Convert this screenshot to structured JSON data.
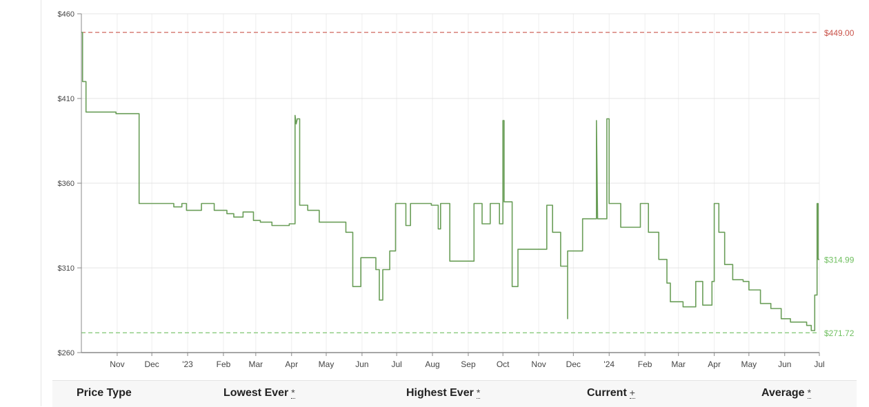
{
  "chart_data": {
    "type": "line",
    "y_ticks": [
      "$460",
      "$410",
      "$360",
      "$310",
      "$260"
    ],
    "y_tick_values": [
      460,
      410,
      360,
      310,
      260
    ],
    "ylim": [
      260,
      460
    ],
    "x_ticks": [
      "Nov",
      "Dec",
      "'23",
      "Feb",
      "Mar",
      "Apr",
      "May",
      "Jun",
      "Jul",
      "Aug",
      "Sep",
      "Oct",
      "Nov",
      "Dec",
      "'24",
      "Feb",
      "Mar",
      "Apr",
      "May",
      "Jun",
      "Jul"
    ],
    "x_tick_dates": [
      "2022-11-01",
      "2022-12-01",
      "2023-01-01",
      "2023-02-01",
      "2023-03-01",
      "2023-04-01",
      "2023-05-01",
      "2023-06-01",
      "2023-07-01",
      "2023-08-01",
      "2023-09-01",
      "2023-10-01",
      "2023-11-01",
      "2023-12-01",
      "2024-01-01",
      "2024-02-01",
      "2024-03-01",
      "2024-04-01",
      "2024-05-01",
      "2024-06-01",
      "2024-07-01"
    ],
    "xlim": [
      "2022-10-01",
      "2024-07-01"
    ],
    "grid": true,
    "series": [
      {
        "color": "#6a9e58",
        "points": [
          [
            "2022-10-01",
            449
          ],
          [
            "2022-10-02",
            449
          ],
          [
            "2022-10-02",
            420
          ],
          [
            "2022-10-05",
            420
          ],
          [
            "2022-10-05",
            402
          ],
          [
            "2022-10-31",
            402
          ],
          [
            "2022-10-31",
            401
          ],
          [
            "2022-11-20",
            401
          ],
          [
            "2022-11-20",
            348
          ],
          [
            "2022-12-20",
            348
          ],
          [
            "2022-12-20",
            346
          ],
          [
            "2022-12-27",
            346
          ],
          [
            "2022-12-27",
            348
          ],
          [
            "2022-12-31",
            348
          ],
          [
            "2022-12-31",
            344
          ],
          [
            "2023-01-13",
            344
          ],
          [
            "2023-01-13",
            348
          ],
          [
            "2023-01-24",
            348
          ],
          [
            "2023-01-24",
            344
          ],
          [
            "2023-02-04",
            344
          ],
          [
            "2023-02-04",
            342
          ],
          [
            "2023-02-10",
            342
          ],
          [
            "2023-02-10",
            340
          ],
          [
            "2023-02-18",
            340
          ],
          [
            "2023-02-18",
            343
          ],
          [
            "2023-02-27",
            343
          ],
          [
            "2023-02-27",
            338
          ],
          [
            "2023-03-05",
            338
          ],
          [
            "2023-03-05",
            337
          ],
          [
            "2023-03-15",
            337
          ],
          [
            "2023-03-15",
            335
          ],
          [
            "2023-03-30",
            335
          ],
          [
            "2023-03-30",
            336
          ],
          [
            "2023-04-04",
            336
          ],
          [
            "2023-04-04",
            400
          ],
          [
            "2023-04-05",
            395
          ],
          [
            "2023-04-06",
            398
          ],
          [
            "2023-04-08",
            398
          ],
          [
            "2023-04-08",
            347
          ],
          [
            "2023-04-15",
            347
          ],
          [
            "2023-04-15",
            344
          ],
          [
            "2023-04-25",
            344
          ],
          [
            "2023-04-25",
            337
          ],
          [
            "2023-05-18",
            337
          ],
          [
            "2023-05-18",
            331
          ],
          [
            "2023-05-24",
            331
          ],
          [
            "2023-05-24",
            299
          ],
          [
            "2023-05-31",
            299
          ],
          [
            "2023-05-31",
            316
          ],
          [
            "2023-06-13",
            316
          ],
          [
            "2023-06-13",
            309
          ],
          [
            "2023-06-16",
            309
          ],
          [
            "2023-06-16",
            291
          ],
          [
            "2023-06-19",
            291
          ],
          [
            "2023-06-19",
            309
          ],
          [
            "2023-06-25",
            309
          ],
          [
            "2023-06-25",
            320
          ],
          [
            "2023-06-30",
            320
          ],
          [
            "2023-06-30",
            348
          ],
          [
            "2023-07-09",
            348
          ],
          [
            "2023-07-09",
            335
          ],
          [
            "2023-07-13",
            335
          ],
          [
            "2023-07-13",
            348
          ],
          [
            "2023-07-31",
            348
          ],
          [
            "2023-07-31",
            347
          ],
          [
            "2023-08-06",
            347
          ],
          [
            "2023-08-06",
            333
          ],
          [
            "2023-08-08",
            333
          ],
          [
            "2023-08-08",
            348
          ],
          [
            "2023-08-16",
            348
          ],
          [
            "2023-08-16",
            314
          ],
          [
            "2023-09-06",
            314
          ],
          [
            "2023-09-06",
            348
          ],
          [
            "2023-09-13",
            348
          ],
          [
            "2023-09-13",
            336
          ],
          [
            "2023-09-20",
            336
          ],
          [
            "2023-09-20",
            348
          ],
          [
            "2023-09-28",
            348
          ],
          [
            "2023-09-28",
            336
          ],
          [
            "2023-10-01",
            336
          ],
          [
            "2023-10-01",
            397
          ],
          [
            "2023-10-02",
            397
          ],
          [
            "2023-10-02",
            349
          ],
          [
            "2023-10-09",
            349
          ],
          [
            "2023-10-09",
            299
          ],
          [
            "2023-10-14",
            299
          ],
          [
            "2023-10-14",
            321
          ],
          [
            "2023-11-08",
            321
          ],
          [
            "2023-11-08",
            347
          ],
          [
            "2023-11-13",
            347
          ],
          [
            "2023-11-13",
            331
          ],
          [
            "2023-11-20",
            331
          ],
          [
            "2023-11-20",
            311
          ],
          [
            "2023-11-26",
            311
          ],
          [
            "2023-11-26",
            280
          ],
          [
            "2023-11-26",
            320
          ],
          [
            "2023-12-09",
            320
          ],
          [
            "2023-12-09",
            339
          ],
          [
            "2023-12-21",
            339
          ],
          [
            "2023-12-21",
            397
          ],
          [
            "2023-12-22",
            339
          ],
          [
            "2023-12-30",
            339
          ],
          [
            "2023-12-30",
            398
          ],
          [
            "2024-01-01",
            398
          ],
          [
            "2024-01-01",
            348
          ],
          [
            "2024-01-11",
            348
          ],
          [
            "2024-01-11",
            334
          ],
          [
            "2024-01-28",
            334
          ],
          [
            "2024-01-28",
            348
          ],
          [
            "2024-02-04",
            348
          ],
          [
            "2024-02-04",
            331
          ],
          [
            "2024-02-13",
            331
          ],
          [
            "2024-02-13",
            315
          ],
          [
            "2024-02-20",
            315
          ],
          [
            "2024-02-20",
            301
          ],
          [
            "2024-02-23",
            301
          ],
          [
            "2024-02-23",
            290
          ],
          [
            "2024-03-05",
            290
          ],
          [
            "2024-03-05",
            287
          ],
          [
            "2024-03-16",
            287
          ],
          [
            "2024-03-16",
            302
          ],
          [
            "2024-03-22",
            302
          ],
          [
            "2024-03-22",
            288
          ],
          [
            "2024-03-30",
            288
          ],
          [
            "2024-03-30",
            302
          ],
          [
            "2024-04-01",
            302
          ],
          [
            "2024-04-01",
            348
          ],
          [
            "2024-04-05",
            348
          ],
          [
            "2024-04-05",
            331
          ],
          [
            "2024-04-10",
            331
          ],
          [
            "2024-04-10",
            312
          ],
          [
            "2024-04-17",
            312
          ],
          [
            "2024-04-17",
            303
          ],
          [
            "2024-04-26",
            303
          ],
          [
            "2024-04-26",
            302
          ],
          [
            "2024-05-01",
            302
          ],
          [
            "2024-05-01",
            297
          ],
          [
            "2024-05-11",
            297
          ],
          [
            "2024-05-11",
            289
          ],
          [
            "2024-05-20",
            289
          ],
          [
            "2024-05-20",
            286
          ],
          [
            "2024-05-29",
            286
          ],
          [
            "2024-05-29",
            280
          ],
          [
            "2024-06-06",
            280
          ],
          [
            "2024-06-06",
            278
          ],
          [
            "2024-06-20",
            278
          ],
          [
            "2024-06-20",
            276
          ],
          [
            "2024-06-24",
            276
          ],
          [
            "2024-06-24",
            273
          ],
          [
            "2024-06-27",
            273
          ],
          [
            "2024-06-27",
            294
          ],
          [
            "2024-06-29",
            294
          ],
          [
            "2024-06-29",
            348
          ],
          [
            "2024-06-30",
            348
          ],
          [
            "2024-06-30",
            315
          ],
          [
            "2024-07-01",
            315
          ]
        ]
      }
    ],
    "reference_lines": [
      {
        "label": "$449.00",
        "value": 449,
        "color": "#c9534a"
      },
      {
        "label": "$271.72",
        "value": 271.72,
        "color": "#6fbf5f"
      }
    ],
    "current_label": {
      "label": "$314.99",
      "value": 314.99,
      "color": "#6fbf5f"
    }
  },
  "table": {
    "headers": [
      {
        "label": "Price Type",
        "mark": ""
      },
      {
        "label": "Lowest Ever",
        "mark": "*"
      },
      {
        "label": "Highest Ever",
        "mark": "*"
      },
      {
        "label": "Current",
        "mark": "+"
      },
      {
        "label": "Average",
        "mark": "*"
      }
    ]
  }
}
